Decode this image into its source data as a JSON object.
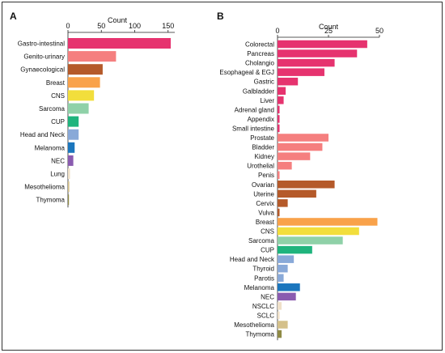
{
  "chart_data": [
    {
      "type": "bar",
      "orientation": "horizontal",
      "panel": "A",
      "xlabel": "Count",
      "xlim": [
        0,
        160
      ],
      "xticks": [
        0,
        50,
        100,
        150
      ],
      "categories": [
        "Gastro-intestinal",
        "Genito-urinary",
        "Gynaecological",
        "Breast",
        "CNS",
        "Sarcoma",
        "CUP",
        "Head and Neck",
        "Melanoma",
        "NEC",
        "Lung",
        "Mesothelioma",
        "Thymoma"
      ],
      "values": [
        154,
        72,
        52,
        48,
        39,
        31,
        16,
        16,
        10,
        8,
        3,
        2,
        1
      ],
      "colors": [
        "#e6336f",
        "#f57f7f",
        "#b55a2a",
        "#f9a24a",
        "#f2de3c",
        "#8fd1a8",
        "#1fb47d",
        "#89a9d8",
        "#1b76bd",
        "#8a5bb0",
        "#efe0c8",
        "#d4c08a",
        "#8f8a45"
      ]
    },
    {
      "type": "bar",
      "orientation": "horizontal",
      "panel": "B",
      "xlabel": "Count",
      "xlim": [
        0,
        50
      ],
      "xticks": [
        0,
        25,
        50
      ],
      "categories": [
        "Colorectal",
        "Pancreas",
        "Cholangio",
        "Esophageal & EGJ",
        "Gastric",
        "Galbladder",
        "Liver",
        "Adrenal gland",
        "Appendix",
        "Small intestine",
        "Prostate",
        "Bladder",
        "Kidney",
        "Urothelial",
        "Penis",
        "Ovarian",
        "Uterine",
        "Cervix",
        "Vulva",
        "Breast",
        "CNS",
        "Sarcoma",
        "CUP",
        "Head and Neck",
        "Thyroid",
        "Parotis",
        "Melanoma",
        "NEC",
        "NSCLC",
        "SCLC",
        "Mesothelioma",
        "Thymoma"
      ],
      "values": [
        44,
        39,
        28,
        23,
        10,
        4,
        3,
        1,
        1,
        1,
        25,
        22,
        16,
        7,
        1,
        28,
        19,
        5,
        1,
        49,
        40,
        32,
        17,
        8,
        5,
        3,
        11,
        9,
        2,
        1,
        5,
        2
      ],
      "colors": [
        "#e6336f",
        "#e6336f",
        "#e6336f",
        "#e6336f",
        "#e6336f",
        "#e6336f",
        "#e6336f",
        "#e6336f",
        "#e6336f",
        "#e6336f",
        "#f57f7f",
        "#f57f7f",
        "#f57f7f",
        "#f57f7f",
        "#f57f7f",
        "#b55a2a",
        "#b55a2a",
        "#b55a2a",
        "#b55a2a",
        "#f9a24a",
        "#f2de3c",
        "#8fd1a8",
        "#1fb47d",
        "#89a9d8",
        "#89a9d8",
        "#89a9d8",
        "#1b76bd",
        "#8a5bb0",
        "#efe0c8",
        "#efe0c8",
        "#d4c08a",
        "#8f8a45"
      ]
    }
  ]
}
